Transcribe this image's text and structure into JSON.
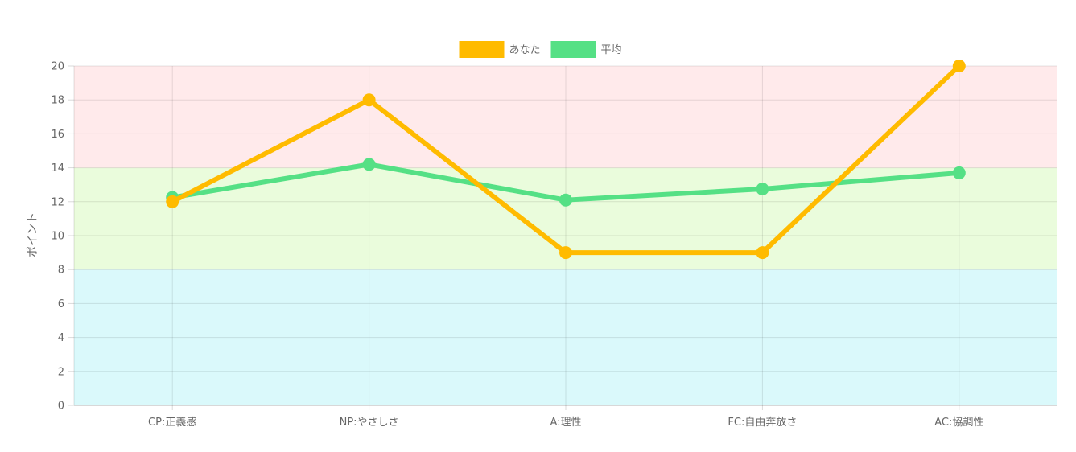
{
  "chart_data": {
    "type": "line",
    "categories": [
      "CP:正義感",
      "NP:やさしさ",
      "A:理性",
      "FC:自由奔放さ",
      "AC:協調性"
    ],
    "series": [
      {
        "name": "あなた",
        "color": "#FFBB00",
        "values": [
          12,
          18,
          9,
          9,
          20
        ]
      },
      {
        "name": "平均",
        "color": "#55E085",
        "values": [
          12.25,
          14.2,
          12.1,
          12.75,
          13.7
        ]
      }
    ],
    "ylabel": "ポイント",
    "xlabel": "",
    "ylim": [
      0,
      20
    ],
    "yticks": [
      0,
      2,
      4,
      6,
      8,
      10,
      12,
      14,
      16,
      18,
      20
    ],
    "bands": [
      {
        "from": 0,
        "to": 8,
        "color": "#DAF9FB"
      },
      {
        "from": 8,
        "to": 14,
        "color": "#EAFCDC"
      },
      {
        "from": 14,
        "to": 20,
        "color": "#FFEAEB"
      }
    ],
    "grid": true,
    "legend": "top-center"
  }
}
